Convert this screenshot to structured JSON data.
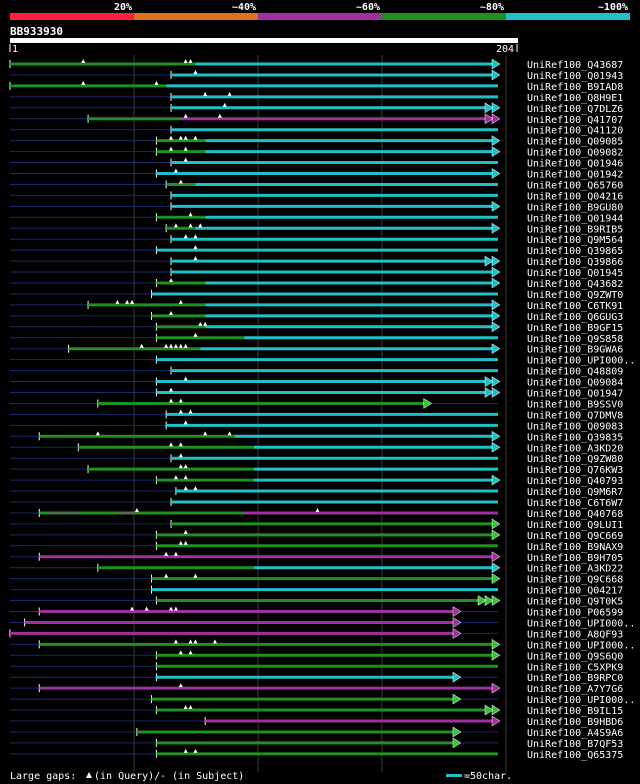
{
  "chart_data": {
    "type": "alignment-overview",
    "query_id": "BB933930",
    "query_start": "1",
    "query_end": "204",
    "identity_scale": [
      {
        "label": "20%",
        "color": "#ff1e3c"
      },
      {
        "label": "~40%",
        "color": "#e07020"
      },
      {
        "label": "~60%",
        "color": "#a030a0"
      },
      {
        "label": "~80%",
        "color": "#209020"
      },
      {
        "label": "~100%",
        "color": "#20c0c8"
      }
    ],
    "legend": {
      "gaps_prefix": "Large gaps: ",
      "gaps_query": "(in Query)/",
      "gaps_subject": "- (in Subject)",
      "scale_label": "=50char."
    },
    "hits": [
      {
        "id": "UniRef100_Q43687",
        "color": "#20c0c8",
        "dstart": 0,
        "start": 0.0,
        "end": 1.0,
        "green_end": 0.38,
        "arrow": 1,
        "marks": [
          0.15,
          0.36,
          0.37
        ],
        "gaps": []
      },
      {
        "id": "UniRef100_Q01943",
        "color": "#20c0c8",
        "dstart": 0.0,
        "start": 0.33,
        "end": 1.0,
        "green_end": 0.0,
        "arrow": 1,
        "marks": [
          0.38
        ],
        "gaps": []
      },
      {
        "id": "UniRef100_B9IAD8",
        "color": "#20c0c8",
        "dstart": 0,
        "start": 0.0,
        "end": 1.0,
        "green_end": 0.32,
        "arrow": 0,
        "marks": [
          0.15,
          0.3
        ],
        "gaps": []
      },
      {
        "id": "UniRef100_Q8H9E1",
        "color": "#20c0c8",
        "dstart": 0.04,
        "start": 0.33,
        "end": 1.0,
        "green_end": 0.0,
        "arrow": 0,
        "marks": [
          0.4,
          0.45
        ],
        "gaps": []
      },
      {
        "id": "UniRef100_Q7DLZ6",
        "color": "#20c0c8",
        "dstart": 0.0,
        "start": 0.33,
        "end": 1.0,
        "green_end": 0.0,
        "arrow": 2,
        "marks": [
          0.44
        ],
        "gaps": []
      },
      {
        "id": "UniRef100_Q41707",
        "color": "#a030a0",
        "dstart": 0.1,
        "start": 0.16,
        "end": 1.0,
        "green_end": 0.35,
        "arrow": 2,
        "marks": [
          0.36,
          0.43
        ],
        "gaps": []
      },
      {
        "id": "UniRef100_Q41120",
        "color": "#20c0c8",
        "dstart": 0.0,
        "start": 0.33,
        "end": 1.0,
        "green_end": 0.0,
        "arrow": 0,
        "marks": [],
        "gaps": []
      },
      {
        "id": "UniRef100_Q09085",
        "color": "#20c0c8",
        "dstart": 0.0,
        "start": 0.3,
        "end": 1.0,
        "green_end": 0.4,
        "arrow": 1,
        "marks": [
          0.33,
          0.35,
          0.36,
          0.38
        ],
        "gaps": []
      },
      {
        "id": "UniRef100_Q09082",
        "color": "#20c0c8",
        "dstart": 0.0,
        "start": 0.3,
        "end": 1.0,
        "green_end": 0.4,
        "arrow": 1,
        "marks": [
          0.33,
          0.36
        ],
        "gaps": []
      },
      {
        "id": "UniRef100_Q01946",
        "color": "#20c0c8",
        "dstart": 0.0,
        "start": 0.33,
        "end": 1.0,
        "green_end": 0.0,
        "arrow": 0,
        "marks": [
          0.36
        ],
        "gaps": []
      },
      {
        "id": "UniRef100_Q01942",
        "color": "#20c0c8",
        "dstart": 0.0,
        "start": 0.3,
        "end": 1.0,
        "green_end": 0.0,
        "arrow": 1,
        "marks": [
          0.34
        ],
        "gaps": []
      },
      {
        "id": "UniRef100_Q65760",
        "color": "#20c0c8",
        "dstart": 0.0,
        "start": 0.32,
        "end": 1.0,
        "green_end": 0.38,
        "arrow": 0,
        "marks": [
          0.35
        ],
        "gaps": []
      },
      {
        "id": "UniRef100_Q04216",
        "color": "#20c0c8",
        "dstart": 0.0,
        "start": 0.33,
        "end": 1.0,
        "green_end": 0.0,
        "arrow": 0,
        "marks": [],
        "gaps": []
      },
      {
        "id": "UniRef100_B9GU80",
        "color": "#20c0c8",
        "dstart": 0.0,
        "start": 0.33,
        "end": 1.0,
        "green_end": 0.0,
        "arrow": 1,
        "marks": [],
        "gaps": []
      },
      {
        "id": "UniRef100_Q01944",
        "color": "#20c0c8",
        "dstart": 0.0,
        "start": 0.3,
        "end": 1.0,
        "green_end": 0.4,
        "arrow": 0,
        "marks": [
          0.37
        ],
        "gaps": []
      },
      {
        "id": "UniRef100_B9RIB5",
        "color": "#20c0c8",
        "dstart": 0.0,
        "start": 0.32,
        "end": 1.0,
        "green_end": 0.38,
        "arrow": 1,
        "marks": [
          0.34,
          0.37,
          0.39
        ],
        "gaps": []
      },
      {
        "id": "UniRef100_Q9M564",
        "color": "#20c0c8",
        "dstart": 0.0,
        "start": 0.33,
        "end": 1.0,
        "green_end": 0.0,
        "arrow": 0,
        "marks": [
          0.36,
          0.38
        ],
        "gaps": []
      },
      {
        "id": "UniRef100_Q39865",
        "color": "#20c0c8",
        "dstart": 0.0,
        "start": 0.3,
        "end": 1.0,
        "green_end": 0.0,
        "arrow": 0,
        "marks": [
          0.38
        ],
        "gaps": []
      },
      {
        "id": "UniRef100_Q39866",
        "color": "#20c0c8",
        "dstart": 0.0,
        "start": 0.33,
        "end": 1.0,
        "green_end": 0.0,
        "arrow": 2,
        "marks": [
          0.38
        ],
        "gaps": []
      },
      {
        "id": "UniRef100_Q01945",
        "color": "#20c0c8",
        "dstart": 0.0,
        "start": 0.33,
        "end": 1.0,
        "green_end": 0.0,
        "arrow": 1,
        "marks": [],
        "gaps": []
      },
      {
        "id": "UniRef100_Q43682",
        "color": "#20c0c8",
        "dstart": 0.0,
        "start": 0.3,
        "end": 1.0,
        "green_end": 0.4,
        "arrow": 1,
        "marks": [
          0.33
        ],
        "gaps": []
      },
      {
        "id": "UniRef100_Q9ZWT0",
        "color": "#20c0c8",
        "dstart": 0.0,
        "start": 0.29,
        "end": 1.0,
        "green_end": 0.0,
        "arrow": 0,
        "marks": [],
        "gaps": []
      },
      {
        "id": "UniRef100_C6TK91",
        "color": "#20c0c8",
        "dstart": 0.1,
        "start": 0.16,
        "end": 1.0,
        "green_end": 0.4,
        "arrow": 1,
        "marks": [
          0.22,
          0.24,
          0.25,
          0.35
        ],
        "gaps": []
      },
      {
        "id": "UniRef100_Q6GUG3",
        "color": "#20c0c8",
        "dstart": 0.0,
        "start": 0.29,
        "end": 1.0,
        "green_end": 0.4,
        "arrow": 1,
        "marks": [
          0.33
        ],
        "gaps": []
      },
      {
        "id": "UniRef100_B9GF15",
        "color": "#20c0c8",
        "dstart": 0.0,
        "start": 0.3,
        "end": 1.0,
        "green_end": 0.4,
        "arrow": 1,
        "marks": [
          0.39,
          0.4
        ],
        "gaps": []
      },
      {
        "id": "UniRef100_Q9S858",
        "color": "#20c0c8",
        "dstart": 0.0,
        "start": 0.3,
        "end": 1.0,
        "green_end": 0.48,
        "arrow": 0,
        "marks": [
          0.38
        ],
        "gaps": []
      },
      {
        "id": "UniRef100_B9GWA6",
        "color": "#20c0c8",
        "dstart": 0.05,
        "start": 0.12,
        "end": 1.0,
        "green_end": 0.39,
        "arrow": 1,
        "marks": [
          0.27,
          0.32,
          0.33,
          0.34,
          0.35,
          0.36
        ],
        "gaps": []
      },
      {
        "id": "UniRef100_UPI000..",
        "color": "#20c0c8",
        "dstart": 0.0,
        "start": 0.3,
        "end": 1.0,
        "green_end": 0.0,
        "arrow": 0,
        "marks": [],
        "gaps": []
      },
      {
        "id": "UniRef100_Q48809",
        "color": "#20c0c8",
        "dstart": 0.0,
        "start": 0.33,
        "end": 1.0,
        "green_end": 0.0,
        "arrow": 0,
        "marks": [],
        "gaps": []
      },
      {
        "id": "UniRef100_Q09084",
        "color": "#20c0c8",
        "dstart": 0.0,
        "start": 0.3,
        "end": 1.0,
        "green_end": 0.0,
        "arrow": 2,
        "marks": [
          0.36
        ],
        "gaps": []
      },
      {
        "id": "UniRef100_Q01947",
        "color": "#20c0c8",
        "dstart": 0.0,
        "start": 0.3,
        "end": 1.0,
        "green_end": 0.0,
        "arrow": 2,
        "marks": [
          0.33
        ],
        "gaps": []
      },
      {
        "id": "UniRef100_B9SSV0",
        "color": "#209020",
        "dstart": 0.0,
        "start": 0.18,
        "end": 0.86,
        "green_end": 1.0,
        "arrow": 1,
        "marks": [
          0.33,
          0.35
        ],
        "gaps": []
      },
      {
        "id": "UniRef100_Q7DMV8",
        "color": "#20c0c8",
        "dstart": 0.0,
        "start": 0.32,
        "end": 1.0,
        "green_end": 0.0,
        "arrow": 0,
        "marks": [
          0.35,
          0.37
        ],
        "gaps": []
      },
      {
        "id": "UniRef100_Q09083",
        "color": "#20c0c8",
        "dstart": 0.0,
        "start": 0.32,
        "end": 1.0,
        "green_end": 0.0,
        "arrow": 0,
        "marks": [
          0.36
        ],
        "gaps": []
      },
      {
        "id": "UniRef100_Q39835",
        "color": "#20c0c8",
        "dstart": 0.06,
        "start": 0.06,
        "end": 1.0,
        "green_end": 0.46,
        "arrow": 1,
        "marks": [
          0.18,
          0.4,
          0.45
        ],
        "gaps": []
      },
      {
        "id": "UniRef100_A3KD20",
        "color": "#20c0c8",
        "dstart": 0.0,
        "start": 0.14,
        "end": 1.0,
        "green_end": 0.5,
        "arrow": 1,
        "marks": [
          0.33,
          0.35
        ],
        "gaps": []
      },
      {
        "id": "UniRef100_Q9ZW80",
        "color": "#20c0c8",
        "dstart": 0.0,
        "start": 0.33,
        "end": 1.0,
        "green_end": 0.0,
        "arrow": 0,
        "marks": [
          0.35
        ],
        "gaps": []
      },
      {
        "id": "UniRef100_Q76KW3",
        "color": "#20c0c8",
        "dstart": 0.0,
        "start": 0.16,
        "end": 1.0,
        "green_end": 0.5,
        "arrow": 0,
        "marks": [
          0.35,
          0.36
        ],
        "gaps": []
      },
      {
        "id": "UniRef100_Q40793",
        "color": "#20c0c8",
        "dstart": 0.0,
        "start": 0.3,
        "end": 1.0,
        "green_end": 0.5,
        "arrow": 1,
        "marks": [
          0.34,
          0.36
        ],
        "gaps": []
      },
      {
        "id": "UniRef100_Q9M6R7",
        "color": "#20c0c8",
        "dstart": 0.0,
        "start": 0.34,
        "end": 1.0,
        "green_end": 0.0,
        "arrow": 0,
        "marks": [
          0.36,
          0.38
        ],
        "gaps": []
      },
      {
        "id": "UniRef100_C6T6W7",
        "color": "#20c0c8",
        "dstart": 0.0,
        "start": 0.33,
        "end": 1.0,
        "green_end": 0.0,
        "arrow": 0,
        "marks": [],
        "gaps": []
      },
      {
        "id": "UniRef100_Q40768",
        "color": "#a030a0",
        "dstart": 0.04,
        "start": 0.06,
        "end": 1.0,
        "green_end": 0.48,
        "arrow": 0,
        "marks": [
          0.26,
          0.63
        ],
        "gaps": [
          [
            0.08,
            0.14
          ],
          [
            0.22,
            0.26
          ]
        ]
      },
      {
        "id": "UniRef100_Q9LUI1",
        "color": "#209020",
        "dstart": 0.0,
        "start": 0.33,
        "end": 1.0,
        "green_end": 1.0,
        "arrow": 1,
        "marks": [],
        "gaps": []
      },
      {
        "id": "UniRef100_Q9C669",
        "color": "#209020",
        "dstart": 0.0,
        "start": 0.3,
        "end": 1.0,
        "green_end": 1.0,
        "arrow": 1,
        "marks": [
          0.36
        ],
        "gaps": []
      },
      {
        "id": "UniRef100_B9NAX9",
        "color": "#209020",
        "dstart": 0.0,
        "start": 0.3,
        "end": 1.0,
        "green_end": 1.0,
        "arrow": 0,
        "marks": [
          0.35,
          0.36
        ],
        "gaps": []
      },
      {
        "id": "UniRef100_B9H705",
        "color": "#a030a0",
        "dstart": 0.04,
        "start": 0.06,
        "end": 1.0,
        "green_end": 0.0,
        "arrow": 1,
        "marks": [
          0.32,
          0.34
        ],
        "gaps": []
      },
      {
        "id": "UniRef100_A3KD22",
        "color": "#20c0c8",
        "dstart": 0.0,
        "start": 0.18,
        "end": 1.0,
        "green_end": 0.5,
        "arrow": 1,
        "marks": [],
        "gaps": []
      },
      {
        "id": "UniRef100_Q9C668",
        "color": "#209020",
        "dstart": 0.0,
        "start": 0.29,
        "end": 1.0,
        "green_end": 1.0,
        "arrow": 1,
        "marks": [
          0.32,
          0.38
        ],
        "gaps": []
      },
      {
        "id": "UniRef100_Q04217",
        "color": "#20c0c8",
        "dstart": 0.0,
        "start": 0.29,
        "end": 1.0,
        "green_end": 0.0,
        "arrow": 0,
        "marks": [],
        "gaps": []
      },
      {
        "id": "UniRef100_Q9T0K5",
        "color": "#209020",
        "dstart": 0.0,
        "start": 0.3,
        "end": 1.0,
        "green_end": 1.0,
        "arrow": 3,
        "marks": [],
        "gaps": []
      },
      {
        "id": "UniRef100_P06599",
        "color": "#a030a0",
        "dstart": 0.04,
        "start": 0.06,
        "end": 0.92,
        "green_end": 0.0,
        "arrow": 1,
        "marks": [
          0.25,
          0.28,
          0.33,
          0.34
        ],
        "gaps": []
      },
      {
        "id": "UniRef100_UPI000..",
        "color": "#a030a0",
        "dstart": 0.0,
        "start": 0.03,
        "end": 0.92,
        "green_end": 0.0,
        "arrow": 1,
        "marks": [],
        "gaps": []
      },
      {
        "id": "UniRef100_A8QF93",
        "color": "#a030a0",
        "dstart": 0.0,
        "start": 0.0,
        "end": 0.92,
        "green_end": 0.0,
        "arrow": 1,
        "marks": [],
        "gaps": []
      },
      {
        "id": "UniRef100_UPI000..",
        "color": "#209020",
        "dstart": 0.04,
        "start": 0.06,
        "end": 1.0,
        "green_end": 1.0,
        "arrow": 1,
        "marks": [
          0.34,
          0.37,
          0.38,
          0.42
        ],
        "gaps": []
      },
      {
        "id": "UniRef100_Q9S6Q0",
        "color": "#209020",
        "dstart": 0.0,
        "start": 0.3,
        "end": 1.0,
        "green_end": 1.0,
        "arrow": 1,
        "marks": [
          0.35,
          0.37
        ],
        "gaps": []
      },
      {
        "id": "UniRef100_C5XPK9",
        "color": "#209020",
        "dstart": 0.0,
        "start": 0.3,
        "end": 1.0,
        "green_end": 1.0,
        "arrow": 0,
        "marks": [],
        "gaps": []
      },
      {
        "id": "UniRef100_B9RPC0",
        "color": "#20c0c8",
        "dstart": 0.0,
        "start": 0.3,
        "end": 0.92,
        "green_end": 0.0,
        "arrow": 1,
        "marks": [],
        "gaps": []
      },
      {
        "id": "UniRef100_A7Y7G6",
        "color": "#a030a0",
        "dstart": 0.04,
        "start": 0.06,
        "end": 1.0,
        "green_end": 0.0,
        "arrow": 1,
        "marks": [
          0.35
        ],
        "gaps": []
      },
      {
        "id": "UniRef100_UPI000..",
        "color": "#209020",
        "dstart": 0.0,
        "start": 0.29,
        "end": 0.92,
        "green_end": 1.0,
        "arrow": 1,
        "marks": [],
        "gaps": []
      },
      {
        "id": "UniRef100_B9IL15",
        "color": "#209020",
        "dstart": 0.0,
        "start": 0.3,
        "end": 1.0,
        "green_end": 1.0,
        "arrow": 2,
        "marks": [
          0.36,
          0.37
        ],
        "gaps": []
      },
      {
        "id": "UniRef100_B9HBD6",
        "color": "#a030a0",
        "dstart": 0.0,
        "start": 0.4,
        "end": 1.0,
        "green_end": 0.0,
        "arrow": 1,
        "marks": [],
        "gaps": []
      },
      {
        "id": "UniRef100_A4S9A6",
        "color": "#209020",
        "dstart": 0.0,
        "start": 0.26,
        "end": 0.92,
        "green_end": 1.0,
        "arrow": 1,
        "marks": [],
        "gaps": []
      },
      {
        "id": "UniRef100_B7QF53",
        "color": "#209020",
        "dstart": 0.0,
        "start": 0.3,
        "end": 0.92,
        "green_end": 1.0,
        "arrow": 1,
        "marks": [],
        "gaps": []
      },
      {
        "id": "UniRef100_Q65375",
        "color": "#209020",
        "dstart": 0.0,
        "start": 0.3,
        "end": 1.0,
        "green_end": 1.0,
        "arrow": 0,
        "marks": [
          0.36,
          0.38
        ],
        "gaps": []
      }
    ]
  }
}
